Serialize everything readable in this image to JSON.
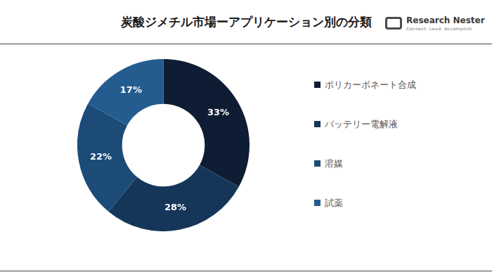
{
  "chart_data": {
    "type": "doughnut",
    "title": "炭酸ジメチル市場ーアプリケーション別の分類",
    "categories": [
      "ポリカーボネート合成",
      "バッテリー電解液",
      "溶媒",
      "試薬"
    ],
    "values": [
      33,
      28,
      22,
      17
    ],
    "value_labels": [
      "33%",
      "28%",
      "22%",
      "17%"
    ],
    "colors": [
      "#0e1d33",
      "#163659",
      "#1c4b78",
      "#255c8f"
    ],
    "data_labels": true,
    "legend": "right",
    "annotations": [
      "Research Nester",
      "Connect. Lead. Accomplish"
    ]
  }
}
